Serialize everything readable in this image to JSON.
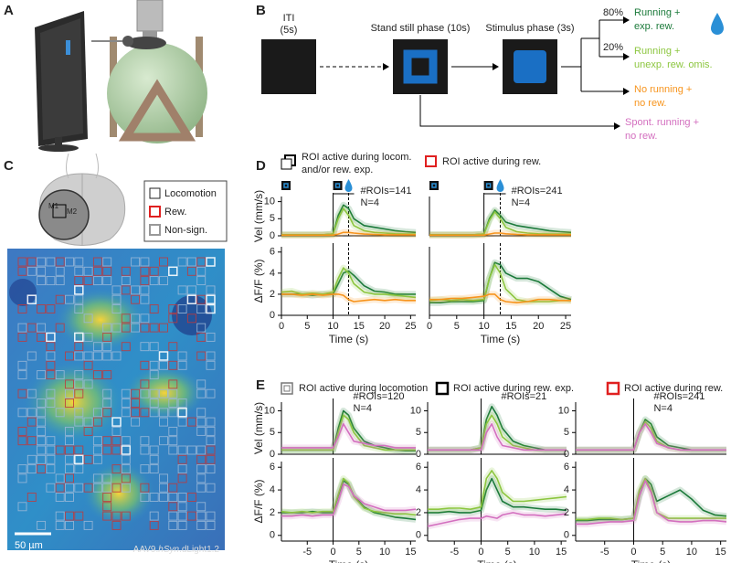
{
  "panel_labels": [
    "A",
    "B",
    "C",
    "D",
    "E"
  ],
  "task": {
    "iti": "ITI",
    "iti_duration": "(5s)",
    "stand_still": "Stand still phase (10s)",
    "stimulus": "Stimulus phase (3s)",
    "p80": "80%",
    "p20": "20%",
    "outcomes": [
      [
        "Running +",
        "exp. rew."
      ],
      [
        "Running +",
        "unexp. rew. omis."
      ],
      [
        "No running +",
        "no rew."
      ],
      [
        "Spont. running +",
        "no rew."
      ]
    ]
  },
  "atlas": {
    "m1": "M1",
    "m2": "M2"
  },
  "legend_c": [
    "Locomotion",
    "Rew.",
    "Non-sign."
  ],
  "scale_bar": "50 µm",
  "virus": [
    "AAV9.",
    "hSyn",
    ".dLight1.2"
  ],
  "legend_d": [
    [
      "ROI active during locom.",
      "and/or rew. exp."
    ],
    "ROI active during rew."
  ],
  "legend_e": [
    "ROI active during locomotion",
    "ROI active during rew. exp.",
    "ROI active during rew."
  ],
  "plots": [
    {
      "ylabel": "Vel (mm/s)",
      "xlim": [
        0,
        26
      ],
      "ylim": [
        0,
        11.5
      ],
      "xticks": [],
      "yticks": [
        0,
        5,
        10
      ],
      "onset": 10,
      "reward": 13,
      "annotations": [
        "#ROIs=141",
        "N=4"
      ],
      "x": [
        0,
        2,
        4,
        6,
        8,
        10,
        11,
        12,
        13,
        14,
        16,
        18,
        20,
        22,
        24,
        26
      ],
      "series": [
        {
          "color": "#1b7a3a",
          "values": [
            0.3,
            0.3,
            0.3,
            0.3,
            0.3,
            0.5,
            6,
            9,
            8,
            5,
            3,
            2.5,
            2,
            1.5,
            1.2,
            1
          ]
        },
        {
          "color": "#8cc63f",
          "values": [
            0.3,
            0.3,
            0.3,
            0.3,
            0.3,
            0.5,
            5,
            8,
            6,
            3,
            1.5,
            1,
            0.8,
            0.6,
            0.5,
            0.5
          ]
        },
        {
          "color": "#f7941d",
          "values": [
            0.2,
            0.2,
            0.2,
            0.2,
            0.2,
            0.2,
            0.5,
            1,
            1,
            0.8,
            0.5,
            0.4,
            0.3,
            0.3,
            0.3,
            0.3
          ]
        }
      ]
    },
    {
      "xlim": [
        0,
        26
      ],
      "ylim": [
        0,
        11.5
      ],
      "xticks": [],
      "yticks": [],
      "onset": 10,
      "reward": 13,
      "annotations": [
        "#ROIs=241",
        "N=4"
      ],
      "x": [
        0,
        2,
        4,
        6,
        8,
        10,
        11,
        12,
        13,
        14,
        16,
        18,
        20,
        22,
        24,
        26
      ],
      "series": [
        {
          "color": "#1b7a3a",
          "values": [
            0.3,
            0.3,
            0.3,
            0.3,
            0.3,
            0.5,
            5,
            7.5,
            6,
            4,
            3,
            2.5,
            2,
            1.5,
            1.2,
            1
          ]
        },
        {
          "color": "#8cc63f",
          "values": [
            0.3,
            0.3,
            0.3,
            0.3,
            0.3,
            0.5,
            4.5,
            7,
            5,
            2.5,
            1.2,
            0.8,
            0.6,
            0.5,
            0.5,
            0.5
          ]
        },
        {
          "color": "#f7941d",
          "values": [
            0.2,
            0.2,
            0.2,
            0.2,
            0.2,
            0.2,
            0.5,
            0.8,
            0.8,
            0.6,
            0.4,
            0.3,
            0.3,
            0.3,
            0.3,
            0.3
          ]
        }
      ]
    },
    {
      "ylabel": "ΔF/F (%)",
      "xlabel": "Time (s)",
      "xlim": [
        0,
        26
      ],
      "ylim": [
        0,
        6.5
      ],
      "xticks": [
        0,
        5,
        10,
        15,
        20,
        25
      ],
      "yticks": [
        0,
        2,
        4,
        6
      ],
      "onset": 10,
      "reward": 13,
      "x": [
        0,
        2,
        4,
        6,
        8,
        10,
        11,
        12,
        13,
        14,
        16,
        18,
        20,
        22,
        24,
        26
      ],
      "series": [
        {
          "color": "#1b7a3a",
          "values": [
            2,
            2,
            2,
            1.9,
            2,
            2,
            3,
            4,
            4.2,
            3.8,
            2.8,
            2.3,
            2.2,
            2,
            2,
            2
          ]
        },
        {
          "color": "#8cc63f",
          "values": [
            2.2,
            2.3,
            2,
            2.1,
            2,
            2.2,
            3.5,
            4.5,
            4,
            3,
            2.2,
            2,
            2,
            1.9,
            1.8,
            1.7
          ]
        },
        {
          "color": "#f7941d",
          "values": [
            2,
            2,
            1.9,
            2,
            1.9,
            2,
            2,
            1.9,
            1.5,
            1.3,
            1.4,
            1.5,
            1.4,
            1.5,
            1.4,
            1.4
          ]
        }
      ]
    },
    {
      "xlabel": "Time (s)",
      "xlim": [
        0,
        26
      ],
      "ylim": [
        0,
        6.5
      ],
      "xticks": [
        0,
        5,
        10,
        15,
        20,
        25
      ],
      "yticks": [],
      "onset": 10,
      "reward": 13,
      "x": [
        0,
        2,
        4,
        6,
        8,
        10,
        11,
        12,
        13,
        14,
        16,
        18,
        20,
        22,
        24,
        26
      ],
      "series": [
        {
          "color": "#1b7a3a",
          "values": [
            1.2,
            1.2,
            1.3,
            1.3,
            1.3,
            1.4,
            3.5,
            5,
            4.8,
            4,
            3.5,
            3.5,
            3.2,
            2.5,
            1.8,
            1.5
          ]
        },
        {
          "color": "#8cc63f",
          "values": [
            1.4,
            1.5,
            1.4,
            1.5,
            1.4,
            1.5,
            3.5,
            4.8,
            4,
            2.5,
            1.5,
            1.3,
            1.3,
            1.3,
            1.4,
            1.4
          ]
        },
        {
          "color": "#f7941d",
          "values": [
            1.5,
            1.5,
            1.6,
            1.6,
            1.7,
            1.8,
            2,
            2,
            1.5,
            1.3,
            1.2,
            1.3,
            1.5,
            1.5,
            1.4,
            1.4
          ]
        }
      ]
    },
    {
      "ylabel": "Vel (mm/s)",
      "xlim": [
        -10,
        16
      ],
      "ylim": [
        0,
        12
      ],
      "xticks": [],
      "yticks": [
        0,
        5,
        10
      ],
      "onset": 0,
      "annotations": [
        "#ROIs=120",
        "N=4"
      ],
      "x": [
        -10,
        -8,
        -6,
        -4,
        -2,
        0,
        1,
        2,
        3,
        4,
        6,
        8,
        10,
        12,
        14,
        16
      ],
      "series": [
        {
          "color": "#1b7a3a",
          "values": [
            1,
            1,
            1,
            1,
            1,
            1,
            6,
            10,
            9,
            6,
            3,
            2,
            1.5,
            1,
            0.8,
            0.8
          ]
        },
        {
          "color": "#8cc63f",
          "values": [
            1,
            1,
            1,
            1,
            1,
            1,
            5,
            9,
            8,
            5,
            2,
            1.5,
            1,
            1,
            1,
            1
          ]
        },
        {
          "color": "#d36fbf",
          "values": [
            1.5,
            1.5,
            1.5,
            1.5,
            1.5,
            1.5,
            4,
            7,
            5,
            3,
            2.5,
            2,
            2,
            1.5,
            1.5,
            1.5
          ]
        }
      ]
    },
    {
      "xlim": [
        -10,
        16
      ],
      "ylim": [
        0,
        12
      ],
      "xticks": [],
      "yticks": [
        0,
        5,
        10
      ],
      "onset": 0,
      "annotations": [
        "#ROIs=21"
      ],
      "x": [
        -10,
        -8,
        -6,
        -4,
        -2,
        0,
        1,
        2,
        3,
        4,
        6,
        8,
        10,
        12,
        14,
        16
      ],
      "series": [
        {
          "color": "#1b7a3a",
          "values": [
            1,
            1,
            1,
            1,
            1,
            1.5,
            8,
            11,
            9,
            6,
            3,
            2,
            1.5,
            1,
            1,
            1
          ]
        },
        {
          "color": "#8cc63f",
          "values": [
            1,
            1,
            1,
            1,
            1,
            1.5,
            7,
            9,
            7,
            4,
            2,
            1.5,
            1,
            1,
            1,
            1
          ]
        },
        {
          "color": "#d36fbf",
          "values": [
            1,
            1,
            1,
            1,
            1,
            1,
            5,
            7,
            4,
            2,
            1.5,
            1,
            1,
            1,
            1,
            1
          ]
        }
      ]
    },
    {
      "xlim": [
        -10,
        16
      ],
      "ylim": [
        0,
        12
      ],
      "xticks": [],
      "yticks": [
        0,
        5,
        10
      ],
      "onset": 0,
      "annotations": [
        "#ROIs=241",
        "N=4"
      ],
      "x": [
        -10,
        -8,
        -6,
        -4,
        -2,
        0,
        1,
        2,
        3,
        4,
        6,
        8,
        10,
        12,
        14,
        16
      ],
      "series": [
        {
          "color": "#1b7a3a",
          "values": [
            1,
            1,
            1,
            1,
            1,
            1,
            5,
            8,
            7,
            4,
            2,
            1.5,
            1,
            1,
            1,
            1
          ]
        },
        {
          "color": "#8cc63f",
          "values": [
            1,
            1,
            1,
            1,
            1,
            1,
            5,
            7.5,
            6,
            3,
            1.5,
            1,
            1,
            1,
            1,
            1
          ]
        },
        {
          "color": "#d36fbf",
          "values": [
            1,
            1,
            1,
            1,
            1,
            1,
            5,
            7,
            5,
            2.5,
            1.5,
            1,
            1,
            1,
            1,
            1
          ]
        }
      ]
    },
    {
      "ylabel": "ΔF/F (%)",
      "xlabel": "Time (s)",
      "xlim": [
        -10,
        16
      ],
      "ylim": [
        -0.5,
        6.5
      ],
      "xticks": [
        -5,
        0,
        5,
        10,
        15
      ],
      "yticks": [
        0,
        2,
        4,
        6
      ],
      "onset": 0,
      "x": [
        -10,
        -8,
        -6,
        -4,
        -2,
        0,
        1,
        2,
        3,
        4,
        6,
        8,
        10,
        12,
        14,
        16
      ],
      "series": [
        {
          "color": "#1b7a3a",
          "values": [
            2,
            2,
            2,
            2.1,
            2,
            2,
            3.5,
            4.8,
            4.5,
            3.5,
            2.5,
            2,
            1.8,
            1.6,
            1.5,
            1.4
          ]
        },
        {
          "color": "#8cc63f",
          "values": [
            2.1,
            2,
            2.1,
            2,
            2.1,
            2.1,
            3.6,
            5,
            4.6,
            3.4,
            2.4,
            2.1,
            2,
            1.9,
            1.9,
            1.8
          ]
        },
        {
          "color": "#d36fbf",
          "values": [
            1.7,
            1.7,
            1.8,
            1.7,
            1.8,
            1.8,
            3,
            4.5,
            4.3,
            3.5,
            2.8,
            2.5,
            2.2,
            2.2,
            2.2,
            2.3
          ]
        }
      ]
    },
    {
      "xlabel": "Time (s)",
      "xlim": [
        -10,
        16
      ],
      "ylim": [
        -0.5,
        6.5
      ],
      "xticks": [
        -5,
        0,
        5,
        10,
        15
      ],
      "yticks": [
        0,
        2,
        4,
        6
      ],
      "onset": 0,
      "x": [
        -10,
        -8,
        -6,
        -4,
        -2,
        0,
        1,
        2,
        3,
        4,
        6,
        8,
        10,
        12,
        14,
        16
      ],
      "series": [
        {
          "color": "#1b7a3a",
          "values": [
            2,
            2,
            2.1,
            2,
            2,
            2.2,
            4,
            5,
            4,
            3,
            2.5,
            2.5,
            2.4,
            2.3,
            2.3,
            2.2
          ]
        },
        {
          "color": "#8cc63f",
          "values": [
            2.3,
            2.3,
            2.4,
            2.4,
            2.3,
            2.5,
            5,
            5.7,
            5,
            3.8,
            3,
            3,
            3.1,
            3.2,
            3.3,
            3.4
          ]
        },
        {
          "color": "#d36fbf",
          "values": [
            0.8,
            1,
            1.2,
            1.4,
            1.5,
            1.5,
            1.7,
            1.6,
            1.5,
            1.8,
            2,
            1.8,
            1.8,
            1.7,
            1.8,
            1.9
          ]
        }
      ]
    },
    {
      "xlabel": "Time (s)",
      "xlim": [
        -10,
        16
      ],
      "ylim": [
        -0.5,
        6.5
      ],
      "xticks": [
        -5,
        0,
        5,
        10,
        15
      ],
      "yticks": [
        0,
        2,
        4,
        6
      ],
      "onset": 0,
      "x": [
        -10,
        -8,
        -6,
        -4,
        -2,
        0,
        1,
        2,
        3,
        4,
        6,
        8,
        10,
        12,
        14,
        16
      ],
      "series": [
        {
          "color": "#1b7a3a",
          "values": [
            1.3,
            1.3,
            1.4,
            1.4,
            1.4,
            1.5,
            3.5,
            5,
            4.5,
            3,
            3.5,
            4,
            3.2,
            2.2,
            1.8,
            1.7
          ]
        },
        {
          "color": "#8cc63f",
          "values": [
            1.4,
            1.4,
            1.5,
            1.5,
            1.4,
            1.5,
            4,
            5,
            4,
            2,
            1.5,
            1.5,
            1.5,
            1.5,
            1.5,
            1.5
          ]
        },
        {
          "color": "#d36fbf",
          "values": [
            1,
            1,
            1.1,
            1.2,
            1.2,
            1.3,
            3.5,
            4.8,
            3.8,
            2,
            1.3,
            1.2,
            1.2,
            1.3,
            1.3,
            1.2
          ]
        }
      ]
    }
  ]
}
